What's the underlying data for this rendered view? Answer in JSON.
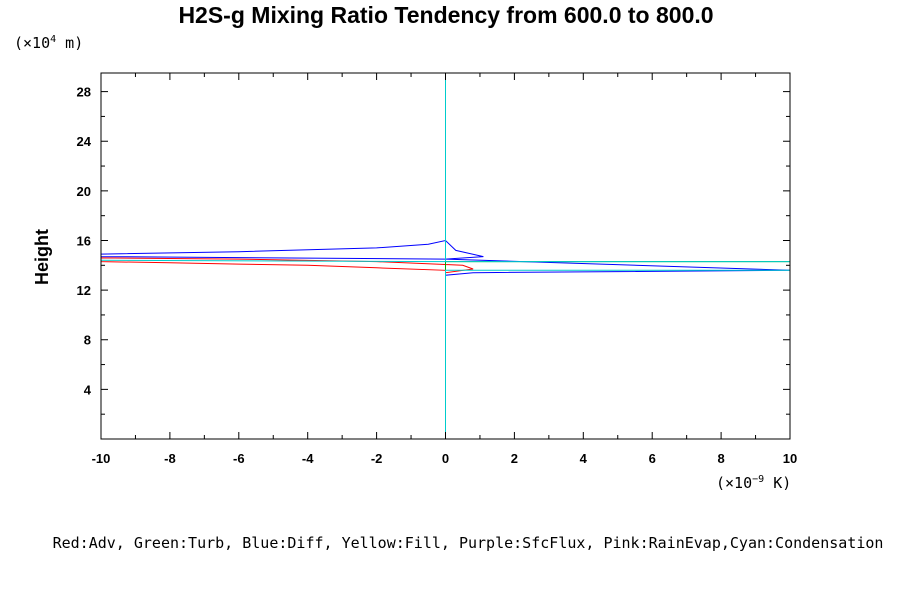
{
  "chart_data": {
    "type": "line",
    "title": "H2S-g Mixing Ratio Tendency from 600.0 to 800.0",
    "ylabel": "Height",
    "y_unit_prefix": "(×10",
    "y_unit_exp": "4",
    "y_unit_suffix": " m)",
    "x_unit_prefix": "(×10",
    "x_unit_exp": "−9",
    "x_unit_suffix": " K)",
    "xlim": [
      -10,
      10
    ],
    "ylim": [
      0,
      29.5
    ],
    "x_ticks": [
      -10,
      -8,
      -6,
      -4,
      -2,
      0,
      2,
      4,
      6,
      8,
      10
    ],
    "x_tick_labels": [
      "-10",
      "-8",
      "-6",
      "-4",
      "-2",
      "0",
      "2",
      "4",
      "6",
      "8",
      "10"
    ],
    "y_ticks": [
      4,
      8,
      12,
      16,
      20,
      24,
      28
    ],
    "y_tick_labels": [
      "4",
      "8",
      "12",
      "16",
      "20",
      "24",
      "28"
    ],
    "legend_text": "Red:Adv, Green:Turb, Blue:Diff, Yellow:Fill, Purple:SfcFlux, Pink:RainEvap,Cyan:Condensation",
    "grid": false,
    "series": [
      {
        "name": "Red:Adv",
        "color": "#ff0000",
        "points": [
          [
            0,
            0
          ],
          [
            0,
            13.6
          ],
          [
            -2,
            13.8
          ],
          [
            -4,
            14.0
          ],
          [
            -6,
            14.1
          ],
          [
            -8,
            14.2
          ],
          [
            -10,
            14.3
          ],
          [
            -10.5,
            14.3
          ],
          [
            -10.5,
            14.6
          ],
          [
            -6,
            14.5
          ],
          [
            -2,
            14.3
          ],
          [
            0.5,
            14.0
          ],
          [
            0.8,
            13.7
          ],
          [
            0,
            13.4
          ],
          [
            0,
            29.5
          ]
        ]
      },
      {
        "name": "Green:Turb",
        "color": "#00aa00",
        "points": [
          [
            0,
            0
          ],
          [
            0,
            14.3
          ],
          [
            6,
            14.3
          ],
          [
            10.5,
            14.3
          ],
          [
            0,
            14.3
          ],
          [
            0,
            29.5
          ]
        ]
      },
      {
        "name": "Blue:Diff",
        "color": "#0000ff",
        "points": [
          [
            0,
            0
          ],
          [
            0,
            13.2
          ],
          [
            0.8,
            13.4
          ],
          [
            10.5,
            13.6
          ],
          [
            0,
            14.5
          ],
          [
            -10.5,
            14.7
          ],
          [
            -10.5,
            14.9
          ],
          [
            -6,
            15.1
          ],
          [
            -2,
            15.4
          ],
          [
            -0.5,
            15.7
          ],
          [
            0,
            16.0
          ],
          [
            0.3,
            15.2
          ],
          [
            1.1,
            14.7
          ],
          [
            0,
            14.5
          ],
          [
            0,
            29.5
          ]
        ]
      },
      {
        "name": "Cyan:Condensation",
        "color": "#00cccc",
        "points": [
          [
            0,
            0
          ],
          [
            0,
            13.6
          ],
          [
            10.5,
            13.6
          ],
          [
            10.5,
            14.3
          ],
          [
            0,
            14.3
          ],
          [
            -10.5,
            14.4
          ],
          [
            0,
            14.3
          ],
          [
            0,
            29.5
          ]
        ]
      }
    ]
  }
}
